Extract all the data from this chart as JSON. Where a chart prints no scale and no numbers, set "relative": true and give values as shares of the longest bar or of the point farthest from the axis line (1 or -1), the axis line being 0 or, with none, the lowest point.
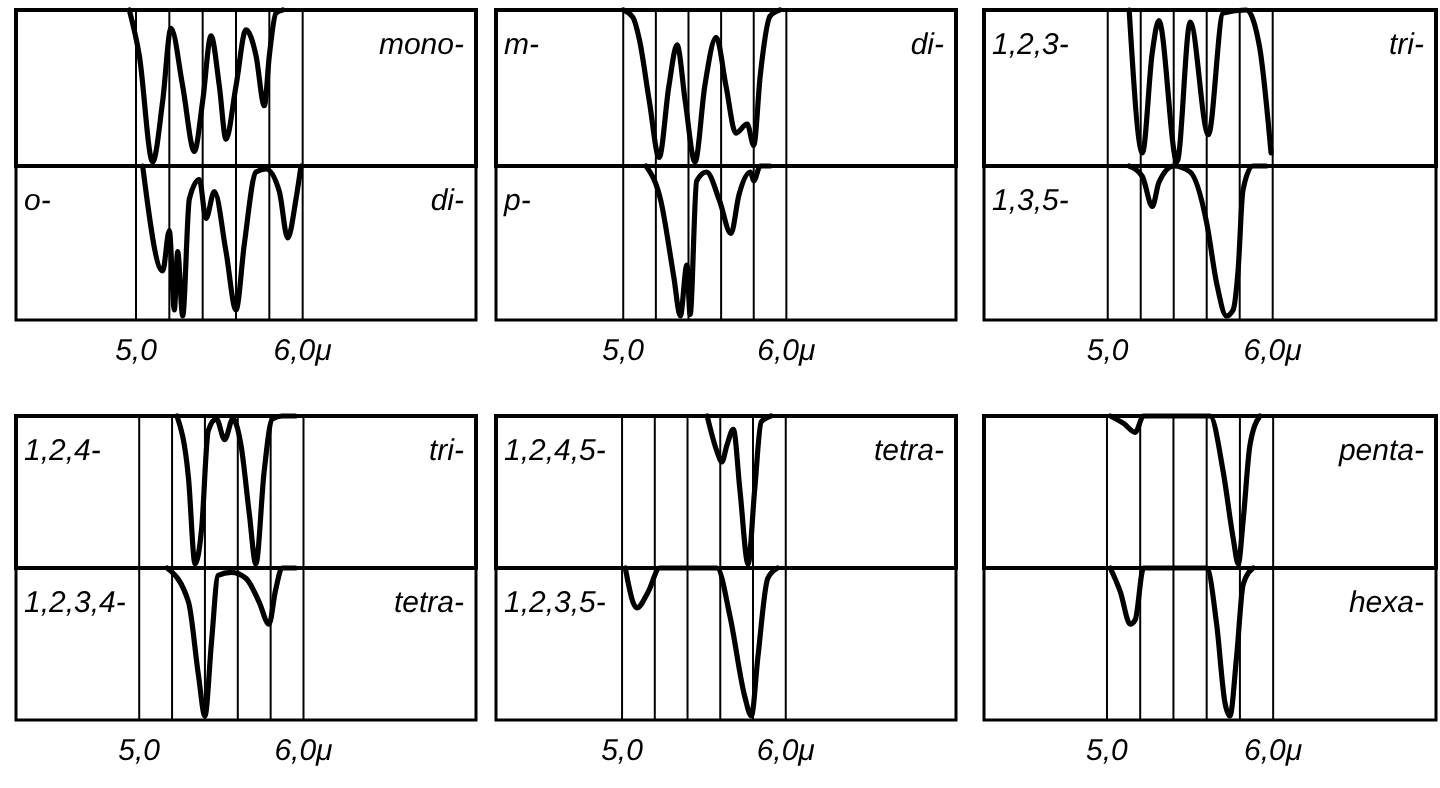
{
  "chart_data": [
    {
      "type": "line",
      "relative": true,
      "grid": "x",
      "tick_labels": false,
      "xlim": [
        4.28,
        7.04
      ],
      "xticks": [
        {
          "value": 5,
          "label": null
        },
        {
          "value": 5.2,
          "label": null
        },
        {
          "value": 5.4,
          "label": null
        },
        {
          "value": 5.6,
          "label": null
        },
        {
          "value": 5.8,
          "label": null
        },
        {
          "value": 6,
          "label": null
        }
      ],
      "annotations": [
        "mono-"
      ],
      "series": [
        {
          "color": "#000000",
          "x": [
            4.96,
            5.02,
            5.1,
            5.16,
            5.21,
            5.28,
            5.35,
            5.4,
            5.45,
            5.5,
            5.54,
            5.6,
            5.66,
            5.72,
            5.77,
            5.8,
            5.84,
            5.88
          ],
          "values": [
            0,
            -0.3,
            -1,
            -0.6,
            -0.12,
            -0.5,
            -0.93,
            -0.6,
            -0.17,
            -0.5,
            -0.85,
            -0.5,
            -0.13,
            -0.3,
            -0.63,
            -0.3,
            -0.02,
            0
          ]
        }
      ]
    },
    {
      "type": "line",
      "relative": true,
      "grid": "x",
      "tick_labels": "x",
      "xlim": [
        4.28,
        7.04
      ],
      "xticks": [
        {
          "value": 5,
          "label": "5,0"
        },
        {
          "value": 5.2,
          "label": null
        },
        {
          "value": 5.4,
          "label": null
        },
        {
          "value": 5.6,
          "label": null
        },
        {
          "value": 5.8,
          "label": null
        },
        {
          "value": 6,
          "label": "6,0μ"
        }
      ],
      "annotations": [
        "di-"
      ],
      "series": [
        {
          "name": "o-",
          "color": "#000000",
          "x": [
            5.04,
            5.16,
            5.2,
            5.23,
            5.25,
            5.28,
            5.32,
            5.38,
            5.42,
            5.47,
            5.54,
            5.6,
            5.65,
            5.72,
            5.78,
            5.86,
            5.91,
            5.96,
            5.99
          ],
          "values": [
            0,
            -0.7,
            -0.43,
            -0.96,
            -0.57,
            -1,
            -0.22,
            -0.09,
            -0.35,
            -0.17,
            -0.57,
            -0.96,
            -0.52,
            -0.04,
            -0.02,
            -0.17,
            -0.48,
            -0.22,
            0
          ]
        }
      ]
    },
    {
      "type": "line",
      "relative": true,
      "grid": "x",
      "tick_labels": false,
      "xlim": [
        4.22,
        7.04
      ],
      "xticks": [
        {
          "value": 5,
          "label": null
        },
        {
          "value": 5.2,
          "label": null
        },
        {
          "value": 5.4,
          "label": null
        },
        {
          "value": 5.6,
          "label": null
        },
        {
          "value": 5.8,
          "label": null
        },
        {
          "value": 6,
          "label": null
        }
      ],
      "annotations": [
        "di-"
      ],
      "series": [
        {
          "name": "m-",
          "color": "#000000",
          "x": [
            5.0,
            5.06,
            5.1,
            5.16,
            5.22,
            5.28,
            5.33,
            5.38,
            5.44,
            5.5,
            5.57,
            5.63,
            5.69,
            5.76,
            5.8,
            5.84,
            5.9,
            5.96
          ],
          "values": [
            0,
            -0.05,
            -0.2,
            -0.6,
            -0.97,
            -0.5,
            -0.23,
            -0.6,
            -1,
            -0.5,
            -0.18,
            -0.5,
            -0.81,
            -0.75,
            -0.89,
            -0.43,
            -0.04,
            0
          ]
        }
      ]
    },
    {
      "type": "line",
      "relative": true,
      "grid": "x",
      "tick_labels": "x",
      "xlim": [
        4.22,
        7.04
      ],
      "xticks": [
        {
          "value": 5,
          "label": "5,0"
        },
        {
          "value": 5.2,
          "label": null
        },
        {
          "value": 5.4,
          "label": null
        },
        {
          "value": 5.6,
          "label": null
        },
        {
          "value": 5.8,
          "label": null
        },
        {
          "value": 6,
          "label": "6,0μ"
        }
      ],
      "series": [
        {
          "name": "p-",
          "color": "#000000",
          "x": [
            5.14,
            5.23,
            5.31,
            5.35,
            5.39,
            5.41,
            5.45,
            5.51,
            5.59,
            5.66,
            5.71,
            5.78,
            5.8,
            5.84,
            5.9
          ],
          "values": [
            0,
            -0.23,
            -0.74,
            -1,
            -0.66,
            -0.99,
            -0.1,
            -0.04,
            -0.23,
            -0.45,
            -0.19,
            -0.04,
            -0.1,
            0,
            0
          ]
        }
      ]
    },
    {
      "type": "line",
      "relative": true,
      "grid": "x",
      "tick_labels": false,
      "xlim": [
        4.25,
        6.99
      ],
      "xticks": [
        {
          "value": 5,
          "label": null
        },
        {
          "value": 5.2,
          "label": null
        },
        {
          "value": 5.4,
          "label": null
        },
        {
          "value": 5.6,
          "label": null
        },
        {
          "value": 5.8,
          "label": null
        },
        {
          "value": 6,
          "label": null
        }
      ],
      "annotations": [
        "tri-"
      ],
      "series": [
        {
          "name": "1,2,3-",
          "color": "#000000",
          "x": [
            5.13,
            5.21,
            5.27,
            5.31,
            5.42,
            5.5,
            5.61,
            5.7,
            5.84,
            5.92,
            5.99
          ],
          "values": [
            0,
            -0.94,
            -0.28,
            -0.07,
            -1,
            -0.08,
            -0.82,
            -0.02,
            0,
            -0.24,
            -0.94
          ]
        }
      ]
    },
    {
      "type": "line",
      "relative": true,
      "grid": "x",
      "tick_labels": "x",
      "xlim": [
        4.25,
        6.99
      ],
      "xticks": [
        {
          "value": 5,
          "label": "5,0"
        },
        {
          "value": 5.2,
          "label": null
        },
        {
          "value": 5.4,
          "label": null
        },
        {
          "value": 5.6,
          "label": null
        },
        {
          "value": 5.8,
          "label": null
        },
        {
          "value": 6,
          "label": "6,0μ"
        }
      ],
      "series": [
        {
          "name": "1,3,5-",
          "color": "#000000",
          "x": [
            5.13,
            5.21,
            5.27,
            5.31,
            5.4,
            5.5,
            5.6,
            5.66,
            5.72,
            5.76,
            5.79,
            5.82,
            5.88,
            5.96
          ],
          "values": [
            0,
            -0.07,
            -0.27,
            -0.11,
            0,
            -0.04,
            -0.38,
            -0.78,
            -1,
            -0.96,
            -0.7,
            -0.16,
            0,
            0
          ]
        }
      ]
    },
    {
      "type": "line",
      "relative": true,
      "grid": "x",
      "tick_labels": false,
      "xlim": [
        4.25,
        7.05
      ],
      "xticks": [
        {
          "value": 5,
          "label": null
        },
        {
          "value": 5.2,
          "label": null
        },
        {
          "value": 5.4,
          "label": null
        },
        {
          "value": 5.6,
          "label": null
        },
        {
          "value": 5.8,
          "label": null
        },
        {
          "value": 6,
          "label": null
        }
      ],
      "annotations": [
        "tri-"
      ],
      "series": [
        {
          "name": "1,2,4-",
          "color": "#000000",
          "x": [
            5.23,
            5.3,
            5.34,
            5.38,
            5.42,
            5.47,
            5.52,
            5.57,
            5.62,
            5.67,
            5.71,
            5.76,
            5.81,
            5.87,
            5.95
          ],
          "values": [
            0,
            -0.42,
            -1,
            -0.76,
            -0.1,
            -0.02,
            -0.16,
            -0.02,
            -0.2,
            -0.66,
            -1,
            -0.38,
            -0.02,
            0,
            0
          ]
        }
      ]
    },
    {
      "type": "line",
      "relative": true,
      "grid": "x",
      "tick_labels": "x",
      "xlim": [
        4.25,
        7.05
      ],
      "xticks": [
        {
          "value": 5,
          "label": "5,0"
        },
        {
          "value": 5.2,
          "label": null
        },
        {
          "value": 5.4,
          "label": null
        },
        {
          "value": 5.6,
          "label": null
        },
        {
          "value": 5.8,
          "label": null
        },
        {
          "value": 6,
          "label": "6,0μ"
        }
      ],
      "annotations": [
        "tetra-"
      ],
      "series": [
        {
          "name": "1,2,3,4-",
          "color": "#000000",
          "x": [
            5.17,
            5.3,
            5.36,
            5.4,
            5.44,
            5.48,
            5.56,
            5.65,
            5.73,
            5.79,
            5.83,
            5.87,
            5.95
          ],
          "values": [
            0,
            -0.23,
            -0.72,
            -1,
            -0.5,
            -0.05,
            -0.03,
            -0.07,
            -0.23,
            -0.38,
            -0.15,
            0,
            0
          ]
        }
      ]
    },
    {
      "type": "line",
      "relative": true,
      "grid": "x",
      "tick_labels": false,
      "xlim": [
        4.23,
        7.04
      ],
      "xticks": [
        {
          "value": 5,
          "label": null
        },
        {
          "value": 5.2,
          "label": null
        },
        {
          "value": 5.4,
          "label": null
        },
        {
          "value": 5.6,
          "label": null
        },
        {
          "value": 5.8,
          "label": null
        },
        {
          "value": 6,
          "label": null
        }
      ],
      "annotations": [
        "tetra-"
      ],
      "series": [
        {
          "name": "1,2,4,5-",
          "color": "#000000",
          "x": [
            5.52,
            5.58,
            5.61,
            5.64,
            5.68,
            5.72,
            5.77,
            5.81,
            5.85,
            5.91
          ],
          "values": [
            0,
            -0.24,
            -0.31,
            -0.2,
            -0.09,
            -0.5,
            -1,
            -0.5,
            -0.04,
            0
          ]
        }
      ]
    },
    {
      "type": "line",
      "relative": true,
      "grid": "x",
      "tick_labels": "x",
      "xlim": [
        4.23,
        7.04
      ],
      "xticks": [
        {
          "value": 5,
          "label": "5,0"
        },
        {
          "value": 5.2,
          "label": null
        },
        {
          "value": 5.4,
          "label": null
        },
        {
          "value": 5.6,
          "label": null
        },
        {
          "value": 5.8,
          "label": null
        },
        {
          "value": 6,
          "label": "6,0μ"
        }
      ],
      "series": [
        {
          "name": "1,2,3,5-",
          "color": "#000000",
          "x": [
            5.02,
            5.07,
            5.09,
            5.16,
            5.23,
            5.4,
            5.58,
            5.66,
            5.75,
            5.79,
            5.83,
            5.89,
            5.95
          ],
          "values": [
            0,
            -0.24,
            -0.27,
            -0.16,
            0,
            0,
            0,
            -0.33,
            -0.87,
            -1,
            -0.6,
            -0.07,
            0
          ]
        }
      ]
    },
    {
      "type": "line",
      "relative": true,
      "grid": "x",
      "tick_labels": false,
      "xlim": [
        4.26,
        6.98
      ],
      "xticks": [
        {
          "value": 5,
          "label": null
        },
        {
          "value": 5.2,
          "label": null
        },
        {
          "value": 5.4,
          "label": null
        },
        {
          "value": 5.6,
          "label": null
        },
        {
          "value": 5.8,
          "label": null
        },
        {
          "value": 6,
          "label": null
        }
      ],
      "annotations": [
        "penta-"
      ],
      "series": [
        {
          "color": "#000000",
          "x": [
            5.02,
            5.1,
            5.17,
            5.22,
            5.4,
            5.62,
            5.7,
            5.76,
            5.79,
            5.82,
            5.86,
            5.92
          ],
          "values": [
            0,
            -0.05,
            -0.11,
            0,
            0,
            0,
            -0.38,
            -0.83,
            -1,
            -0.7,
            -0.2,
            0
          ]
        }
      ]
    },
    {
      "type": "line",
      "relative": true,
      "grid": "x",
      "tick_labels": "x",
      "xlim": [
        4.26,
        6.98
      ],
      "xticks": [
        {
          "value": 5,
          "label": "5,0"
        },
        {
          "value": 5.2,
          "label": null
        },
        {
          "value": 5.4,
          "label": null
        },
        {
          "value": 5.6,
          "label": null
        },
        {
          "value": 5.8,
          "label": null
        },
        {
          "value": 6,
          "label": "6,0μ"
        }
      ],
      "annotations": [
        "hexa-"
      ],
      "series": [
        {
          "color": "#000000",
          "x": [
            5.02,
            5.08,
            5.14,
            5.17,
            5.22,
            5.4,
            5.6,
            5.66,
            5.71,
            5.74,
            5.78,
            5.82,
            5.88
          ],
          "values": [
            0,
            -0.16,
            -0.38,
            -0.35,
            0,
            0,
            0,
            -0.38,
            -0.91,
            -1,
            -0.6,
            -0.11,
            0
          ]
        }
      ]
    }
  ]
}
